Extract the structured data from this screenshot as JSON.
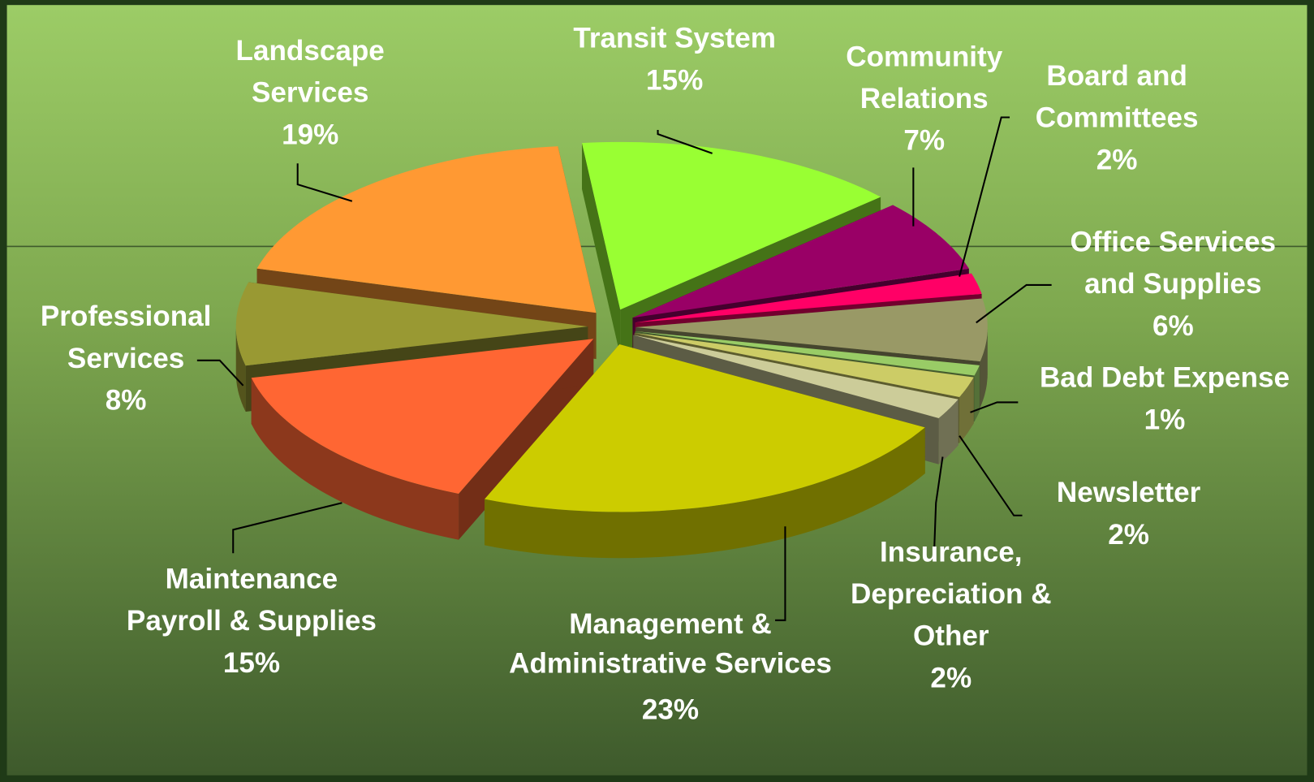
{
  "chart_data": {
    "type": "pie3d",
    "categories": [
      "Transit System",
      "Community Relations",
      "Board and Committees",
      "Office Services and Supplies",
      "Bad Debt Expense",
      "Newsletter",
      "Insurance, Depreciation & Other",
      "Management & Administrative Services",
      "Maintenance Payroll & Supplies",
      "Professional Services",
      "Landscape Services"
    ],
    "values": [
      15,
      7,
      2,
      6,
      1,
      2,
      2,
      23,
      15,
      8,
      19
    ],
    "value_labels": [
      "15%",
      "7%",
      "2%",
      "6%",
      "1%",
      "2%",
      "2%",
      "23%",
      "15%",
      "8%",
      "19%"
    ],
    "colors": [
      "#99ff33",
      "#990066",
      "#ff0066",
      "#999966",
      "#99cc66",
      "#cccc66",
      "#cccc99",
      "#cccc00",
      "#ff6633",
      "#999933",
      "#ff9933"
    ]
  }
}
